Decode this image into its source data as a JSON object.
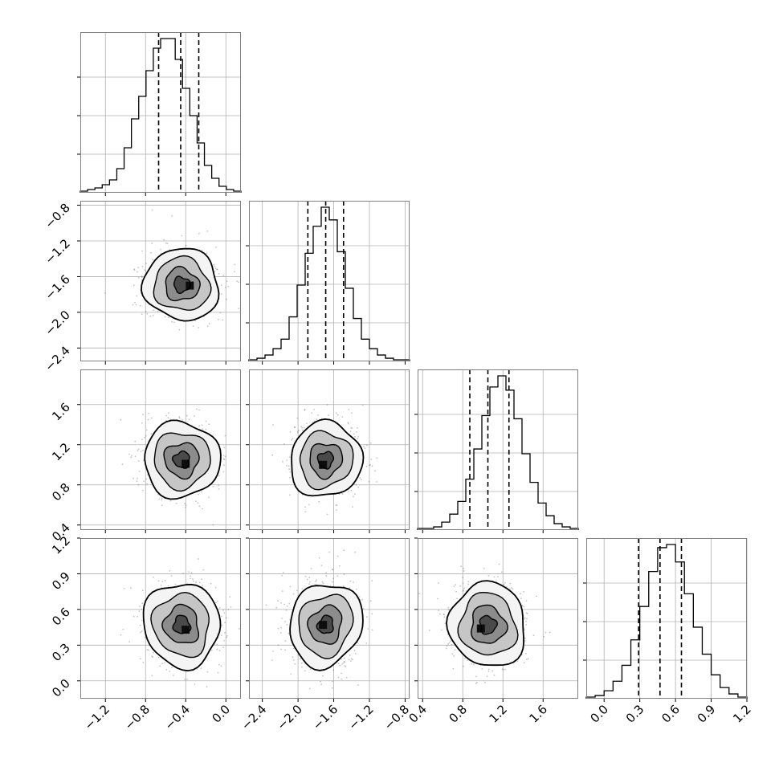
{
  "chart_data": {
    "type": "corner",
    "grid": true,
    "colors": {
      "line": "#000000",
      "scatter": "#555555",
      "grid": "#b0b0b0",
      "frame": "#808080",
      "background": "#ffffff"
    },
    "parameters": [
      {
        "ticks": [
          -1.2,
          -0.8,
          -0.4,
          0.0
        ],
        "tick_labels": [
          "−1.2",
          "−0.8",
          "−0.4",
          "0.0"
        ],
        "range": [
          -1.45,
          0.15
        ],
        "mean": -0.44,
        "std": 0.18,
        "quantiles": [
          -0.67,
          -0.45,
          -0.27
        ]
      },
      {
        "ticks": [
          -2.4,
          -2.0,
          -1.6,
          -1.2,
          -0.8
        ],
        "tick_labels": [
          "−2.4",
          "−2.0",
          "−1.6",
          "−1.2",
          "−0.8"
        ],
        "range": [
          -2.55,
          -0.75
        ],
        "mean": -1.69,
        "std": 0.19,
        "quantiles": [
          -1.89,
          -1.69,
          -1.49
        ]
      },
      {
        "ticks": [
          0.4,
          0.8,
          1.2,
          1.6
        ],
        "tick_labels": [
          "0.4",
          "0.8",
          "1.2",
          "1.6"
        ],
        "range": [
          0.35,
          1.95
        ],
        "mean": 1.05,
        "std": 0.18,
        "quantiles": [
          0.87,
          1.05,
          1.26
        ]
      },
      {
        "ticks": [
          0.0,
          0.3,
          0.6,
          0.9,
          1.2
        ],
        "tick_labels": [
          "0.0",
          "0.3",
          "0.6",
          "0.9",
          "1.2"
        ],
        "range": [
          -0.15,
          1.2
        ],
        "mean": 0.47,
        "std": 0.17,
        "quantiles": [
          0.29,
          0.47,
          0.65
        ]
      }
    ],
    "histograms": [
      {
        "param": 0,
        "counts": [
          1,
          2,
          3,
          5,
          8,
          15,
          28,
          46,
          60,
          76,
          90,
          96,
          96,
          83,
          65,
          48,
          31,
          17,
          9,
          4,
          2,
          1
        ]
      },
      {
        "param": 1,
        "counts": [
          1,
          2,
          4,
          8,
          14,
          28,
          48,
          68,
          85,
          97,
          89,
          69,
          46,
          27,
          14,
          8,
          4,
          2,
          1,
          1
        ]
      },
      {
        "param": 2,
        "counts": [
          1,
          1,
          2,
          5,
          10,
          18,
          32,
          51,
          72,
          90,
          97,
          88,
          70,
          48,
          30,
          17,
          9,
          4,
          2,
          1
        ]
      },
      {
        "param": 3,
        "counts": [
          1,
          2,
          5,
          11,
          21,
          37,
          58,
          80,
          95,
          97,
          86,
          66,
          45,
          28,
          15,
          7,
          3,
          1
        ]
      }
    ],
    "pairs": [
      {
        "x": 0,
        "y": 1,
        "peak": [
          -0.36,
          -1.7
        ]
      },
      {
        "x": 0,
        "y": 2,
        "peak": [
          -0.4,
          1.01
        ]
      },
      {
        "x": 1,
        "y": 2,
        "peak": [
          -1.72,
          1.0
        ]
      },
      {
        "x": 0,
        "y": 3,
        "peak": [
          -0.4,
          0.43
        ]
      },
      {
        "x": 1,
        "y": 3,
        "peak": [
          -1.72,
          0.47
        ]
      },
      {
        "x": 2,
        "y": 3,
        "peak": [
          0.98,
          0.44
        ]
      }
    ]
  }
}
